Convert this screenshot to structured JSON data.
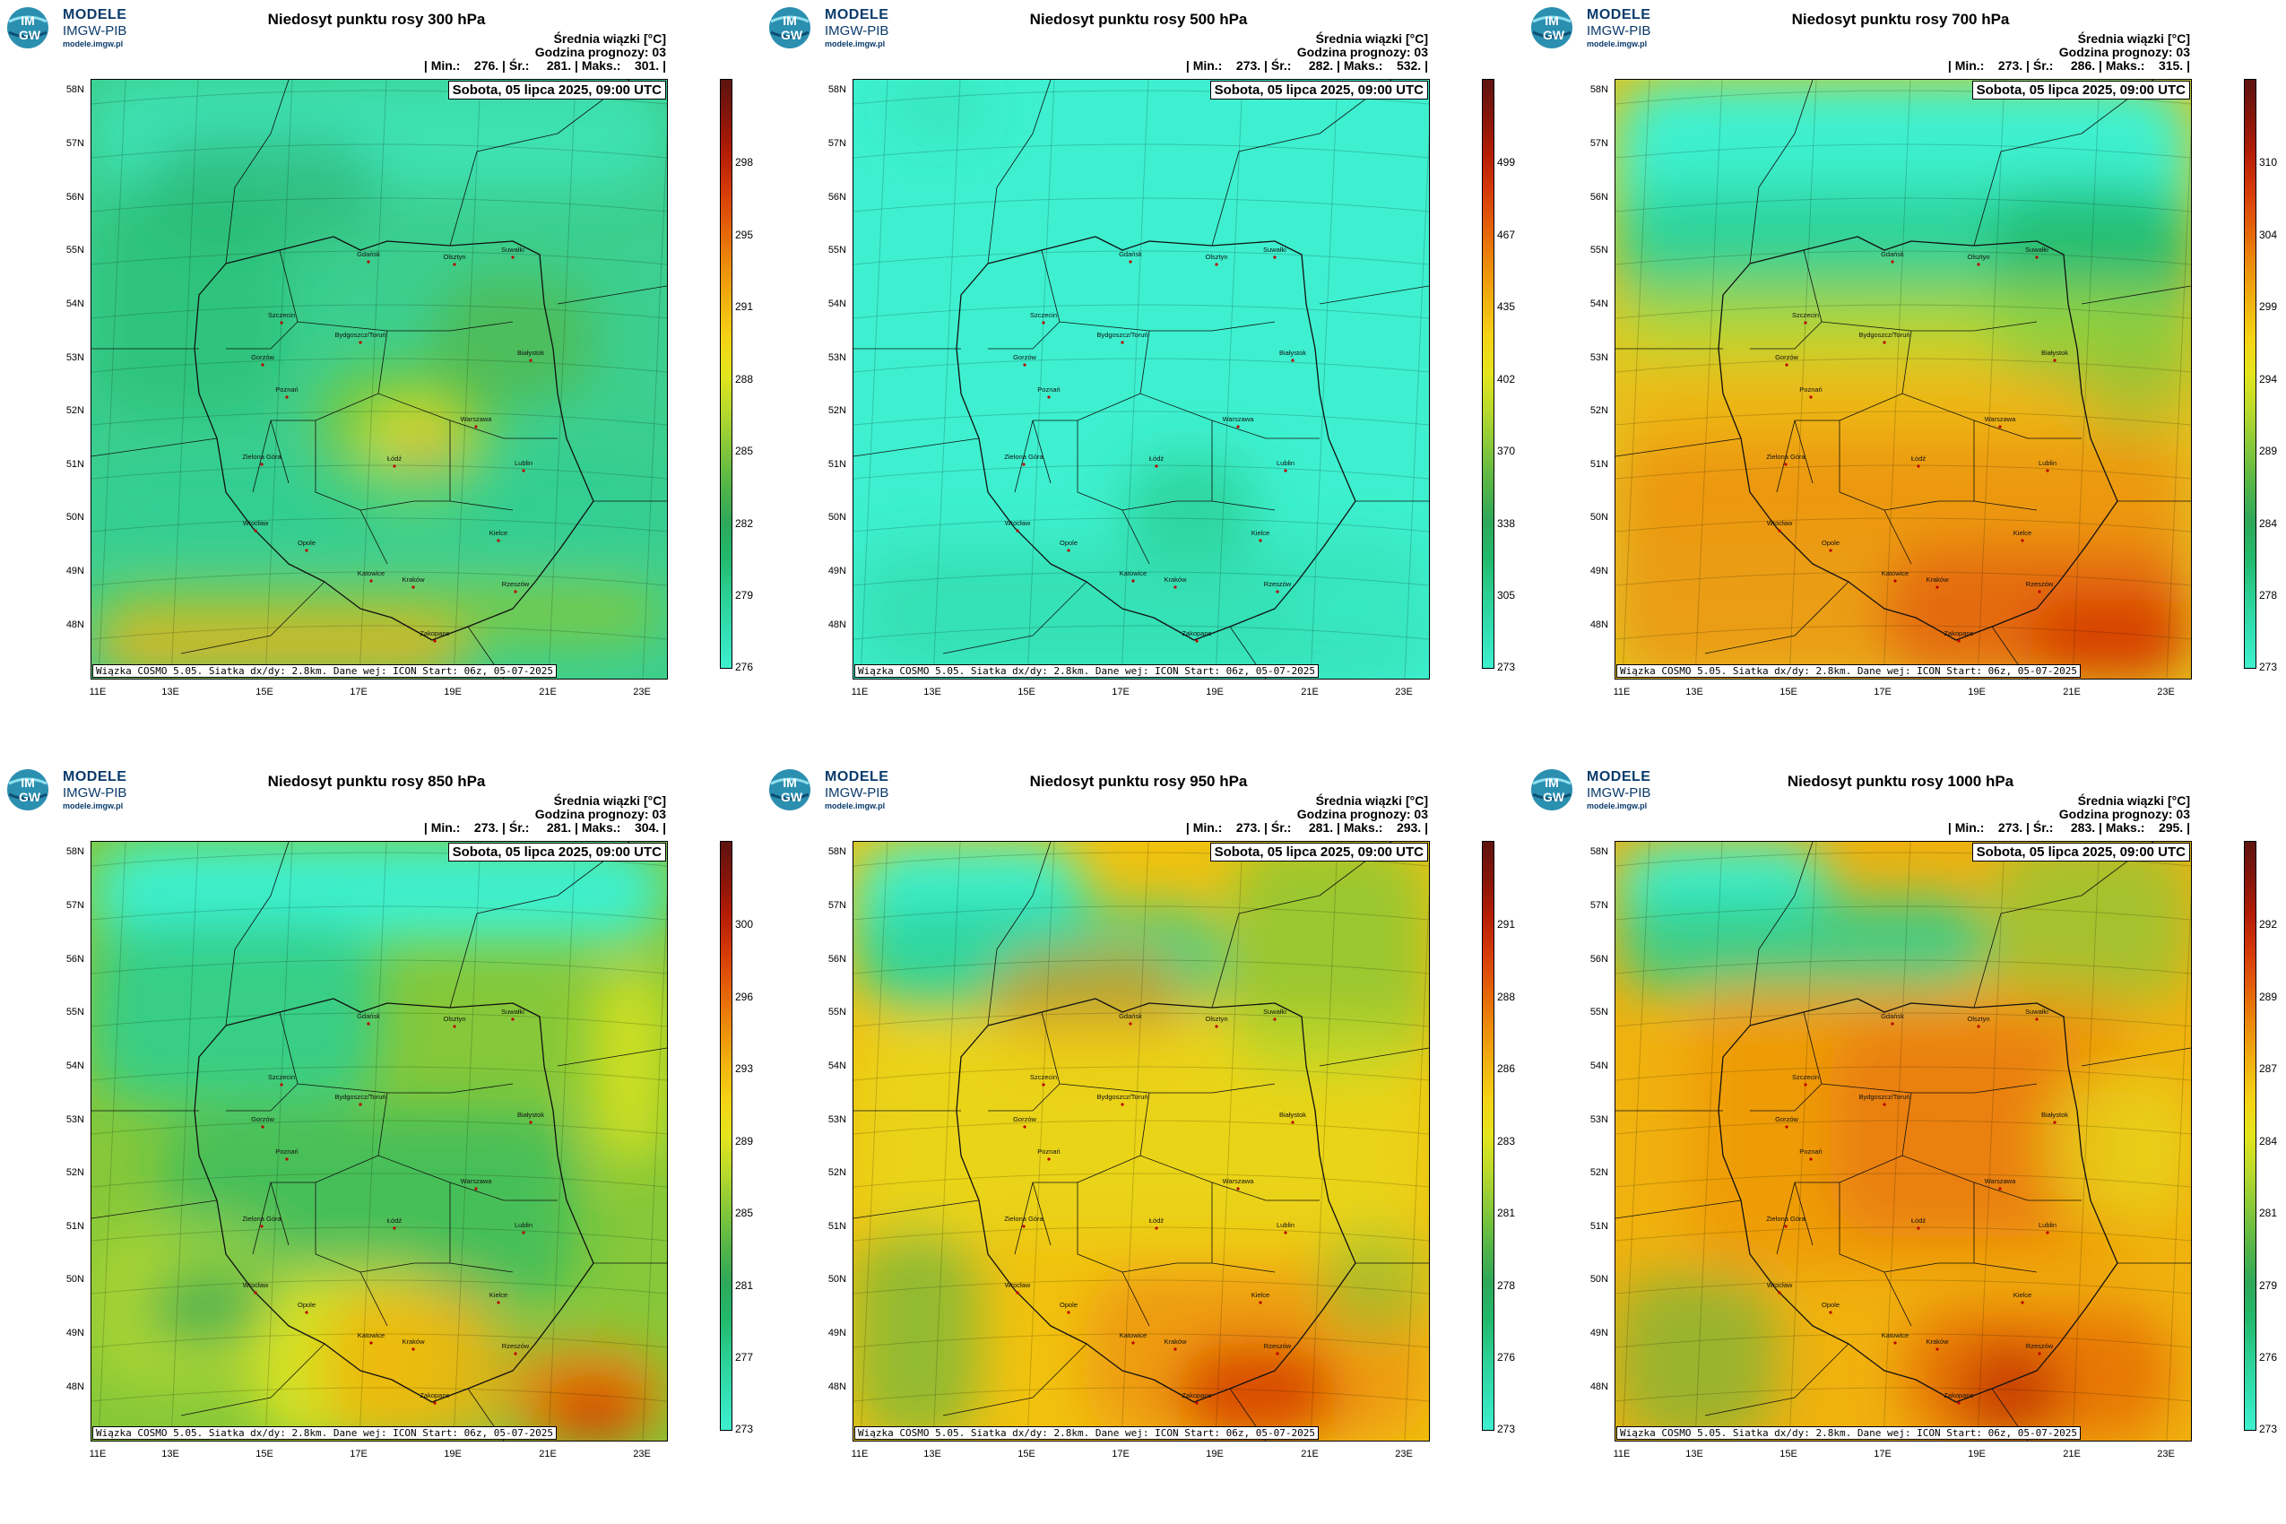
{
  "logo": {
    "line1": "MODELE",
    "line2": "IMGW-PIB",
    "line3": "modele.imgw.pl",
    "badge_top": "IM",
    "badge_bot": "GW"
  },
  "common": {
    "subtitle": "Średnia wiązki [°C]",
    "forecast_hour": "Godzina prognozy: 03",
    "date": "Sobota, 05 lipca 2025, 09:00 UTC",
    "footer": "Wiązka COSMO 5.05. Siatka dx/dy: 2.8km. Dane wej: ICON Start: 06z, 05-07-2025",
    "lat_labels": [
      "58N",
      "57N",
      "56N",
      "55N",
      "54N",
      "53N",
      "52N",
      "51N",
      "50N",
      "49N",
      "48N"
    ],
    "lon_labels": [
      "11E",
      "13E",
      "15E",
      "17E",
      "19E",
      "21E",
      "23E"
    ],
    "cities": [
      "Gdańsk",
      "Olsztyn",
      "Suwałki",
      "Szczecin",
      "Bydgoszcz/Toruń",
      "Białystok",
      "Gorzów",
      "Poznań",
      "Warszawa",
      "Zielona Góra",
      "Łódź",
      "Lublin",
      "Wrocław",
      "Opole",
      "Kielce",
      "Katowice",
      "Kraków",
      "Rzeszów",
      "Zakopane"
    ]
  },
  "panels": [
    {
      "title": "Niedosyt punktu rosy 300 hPa",
      "stats": "| Min.:    276. | Śr.:     281. | Maks.:    301. |",
      "scale": [
        "298",
        "295",
        "291",
        "288",
        "285",
        "282",
        "279",
        "276"
      ],
      "theme": "p300"
    },
    {
      "title": "Niedosyt punktu rosy 500 hPa",
      "stats": "| Min.:    273. | Śr.:     282. | Maks.:    532. |",
      "scale": [
        "499",
        "467",
        "435",
        "402",
        "370",
        "338",
        "305",
        "273"
      ],
      "theme": "p500"
    },
    {
      "title": "Niedosyt punktu rosy 700 hPa",
      "stats": "| Min.:    273. | Śr.:     286. | Maks.:    315. |",
      "scale": [
        "310",
        "304",
        "299",
        "294",
        "289",
        "284",
        "278",
        "273"
      ],
      "theme": "p700"
    },
    {
      "title": "Niedosyt punktu rosy 850 hPa",
      "stats": "| Min.:    273. | Śr.:     281. | Maks.:    304. |",
      "scale": [
        "300",
        "296",
        "293",
        "289",
        "285",
        "281",
        "277",
        "273"
      ],
      "theme": "p850"
    },
    {
      "title": "Niedosyt punktu rosy 950 hPa",
      "stats": "| Min.:    273. | Śr.:     281. | Maks.:    293. |",
      "scale": [
        "291",
        "288",
        "286",
        "283",
        "281",
        "278",
        "276",
        "273"
      ],
      "theme": "p950"
    },
    {
      "title": "Niedosyt punktu rosy 1000 hPa",
      "stats": "| Min.:    273. | Śr.:     283. | Maks.:    295. |",
      "scale": [
        "292",
        "289",
        "287",
        "284",
        "281",
        "279",
        "276",
        "273"
      ],
      "theme": "p1000"
    }
  ]
}
